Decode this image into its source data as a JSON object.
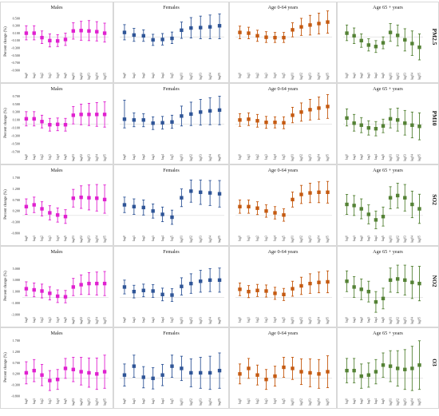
{
  "figure": {
    "columns": [
      "Males",
      "Females",
      "Age 0-64 years",
      "Age 65 + years"
    ],
    "pollutants": [
      "PM2.5",
      "PM10",
      "SO2",
      "NO2",
      "O3"
    ],
    "ylabel": "Percent change (%)",
    "xcategories": [
      "lag0",
      "lag1",
      "lag2",
      "lag3",
      "lag4",
      "lag5",
      "lag01",
      "lag02",
      "lag03",
      "lag04",
      "lag05"
    ],
    "colors": {
      "Males": "#e020d0",
      "Females": "#2f5597",
      "Age 0-64 years": "#c55a11",
      "Age 65 + years": "#548235"
    }
  },
  "chart_data": [
    {
      "type": "scatter",
      "row": "PM2.5",
      "column": "Males",
      "ylim": [
        -0.9,
        0.65
      ],
      "yticks_labels": [
        "-0.900",
        "-0.700",
        "-0.500",
        "-0.300",
        "-0.100",
        "0.100",
        "0.300",
        "0.500"
      ],
      "yticks": [
        -0.9,
        -0.7,
        -0.5,
        -0.3,
        -0.1,
        0.1,
        0.3,
        0.5
      ],
      "x": [
        "lag0",
        "lag1",
        "lag2",
        "lag3",
        "lag4",
        "lag5",
        "lag01",
        "lag02",
        "lag03",
        "lag04",
        "lag05"
      ],
      "values": [
        0.1,
        0.1,
        -0.02,
        -0.1,
        -0.11,
        -0.07,
        0.16,
        0.17,
        0.16,
        0.14,
        0.1
      ],
      "lower": [
        -0.08,
        -0.08,
        -0.18,
        -0.27,
        -0.26,
        -0.23,
        -0.06,
        -0.09,
        -0.1,
        -0.11,
        -0.14
      ],
      "upper": [
        0.3,
        0.3,
        0.16,
        0.08,
        0.06,
        0.1,
        0.38,
        0.42,
        0.44,
        0.41,
        0.37
      ]
    },
    {
      "type": "scatter",
      "row": "PM2.5",
      "column": "Females",
      "ylim": [
        -0.9,
        0.65
      ],
      "x": [
        "lag0",
        "lag1",
        "lag2",
        "lag3",
        "lag4",
        "lag5",
        "lag01",
        "lag02",
        "lag03",
        "lag04",
        "lag05"
      ],
      "values": [
        0.12,
        0.05,
        0.03,
        -0.08,
        -0.07,
        -0.04,
        0.18,
        0.24,
        0.25,
        0.27,
        0.3
      ],
      "lower": [
        -0.08,
        -0.12,
        -0.12,
        -0.23,
        -0.22,
        -0.18,
        -0.04,
        -0.03,
        -0.05,
        -0.05,
        -0.05
      ],
      "upper": [
        0.33,
        0.23,
        0.19,
        0.07,
        0.09,
        0.13,
        0.4,
        0.52,
        0.56,
        0.59,
        0.62
      ]
    },
    {
      "type": "scatter",
      "row": "PM2.5",
      "column": "Age 0-64 years",
      "ylim": [
        -0.9,
        0.65
      ],
      "x": [
        "lag0",
        "lag1",
        "lag2",
        "lag3",
        "lag4",
        "lag5",
        "lag01",
        "lag02",
        "lag03",
        "lag04",
        "lag05"
      ],
      "values": [
        0.12,
        0.1,
        0.03,
        -0.01,
        -0.02,
        -0.02,
        0.19,
        0.27,
        0.32,
        0.36,
        0.4
      ],
      "lower": [
        -0.05,
        -0.05,
        -0.12,
        -0.15,
        -0.15,
        -0.15,
        0.0,
        0.04,
        0.05,
        0.08,
        0.1
      ],
      "upper": [
        0.29,
        0.26,
        0.18,
        0.14,
        0.12,
        0.12,
        0.38,
        0.5,
        0.58,
        0.64,
        0.7
      ]
    },
    {
      "type": "scatter",
      "row": "PM2.5",
      "column": "Age 65 + years",
      "ylim": [
        -0.9,
        0.65
      ],
      "x": [
        "lag0",
        "lag1",
        "lag2",
        "lag3",
        "lag4",
        "lag5",
        "lag01",
        "lag02",
        "lag03",
        "lag04",
        "lag05"
      ],
      "values": [
        0.1,
        0.03,
        -0.1,
        -0.22,
        -0.26,
        -0.16,
        0.12,
        0.04,
        -0.08,
        -0.18,
        -0.28
      ],
      "lower": [
        -0.1,
        -0.18,
        -0.28,
        -0.38,
        -0.42,
        -0.32,
        -0.12,
        -0.24,
        -0.38,
        -0.5,
        -0.62
      ],
      "upper": [
        0.32,
        0.24,
        0.08,
        -0.05,
        -0.1,
        0.0,
        0.36,
        0.32,
        0.22,
        0.16,
        0.08
      ]
    },
    {
      "type": "scatter",
      "row": "PM10",
      "column": "Males",
      "ylim": [
        -0.7,
        0.75
      ],
      "yticks_labels": [
        "-0.700",
        "-0.500",
        "-0.300",
        "-0.100",
        "0.100",
        "0.300",
        "0.500",
        "0.700"
      ],
      "yticks": [
        -0.7,
        -0.5,
        -0.3,
        -0.1,
        0.1,
        0.3,
        0.5,
        0.7
      ],
      "x": [
        "lag0",
        "lag1",
        "lag2",
        "lag3",
        "lag4",
        "lag5",
        "lag01",
        "lag02",
        "lag03",
        "lag04",
        "lag05"
      ],
      "values": [
        0.13,
        0.13,
        0.06,
        -0.02,
        -0.01,
        -0.02,
        0.22,
        0.24,
        0.24,
        0.24,
        0.24
      ],
      "lower": [
        -0.05,
        -0.05,
        -0.1,
        -0.18,
        -0.17,
        -0.18,
        0.0,
        -0.02,
        -0.04,
        -0.06,
        -0.08
      ],
      "upper": [
        0.31,
        0.31,
        0.22,
        0.14,
        0.15,
        0.14,
        0.44,
        0.5,
        0.52,
        0.54,
        0.56
      ]
    },
    {
      "type": "scatter",
      "row": "PM10",
      "column": "Females",
      "ylim": [
        -0.7,
        0.75
      ],
      "x": [
        "lag0",
        "lag1",
        "lag2",
        "lag3",
        "lag4",
        "lag5",
        "lag01",
        "lag02",
        "lag03",
        "lag04",
        "lag05"
      ],
      "values": [
        0.12,
        0.1,
        0.1,
        0.02,
        0.03,
        0.05,
        0.2,
        0.25,
        0.3,
        0.33,
        0.35
      ],
      "lower": [
        -0.1,
        -0.07,
        -0.07,
        -0.14,
        -0.13,
        -0.11,
        -0.05,
        -0.04,
        -0.03,
        -0.02,
        -0.02
      ],
      "upper": [
        0.6,
        0.28,
        0.26,
        0.18,
        0.19,
        0.22,
        0.45,
        0.55,
        0.62,
        0.66,
        0.7
      ]
    },
    {
      "type": "scatter",
      "row": "PM10",
      "column": "Age 0-64 years",
      "ylim": [
        -0.7,
        0.75
      ],
      "x": [
        "lag0",
        "lag1",
        "lag2",
        "lag3",
        "lag4",
        "lag5",
        "lag01",
        "lag02",
        "lag03",
        "lag04",
        "lag05"
      ],
      "values": [
        0.1,
        0.12,
        0.08,
        0.04,
        0.04,
        0.03,
        0.22,
        0.3,
        0.36,
        0.4,
        0.44
      ],
      "lower": [
        -0.06,
        -0.04,
        -0.08,
        -0.11,
        -0.1,
        -0.12,
        0.03,
        0.07,
        0.1,
        0.12,
        0.14
      ],
      "upper": [
        0.26,
        0.28,
        0.24,
        0.19,
        0.18,
        0.18,
        0.42,
        0.53,
        0.62,
        0.68,
        0.74
      ]
    },
    {
      "type": "scatter",
      "row": "PM10",
      "column": "Age 65 + years",
      "ylim": [
        -0.7,
        0.75
      ],
      "x": [
        "lag0",
        "lag1",
        "lag2",
        "lag3",
        "lag4",
        "lag5",
        "lag01",
        "lag02",
        "lag03",
        "lag04",
        "lag05"
      ],
      "values": [
        0.15,
        0.02,
        -0.03,
        -0.1,
        -0.12,
        -0.05,
        0.13,
        0.1,
        0.02,
        -0.03,
        -0.06
      ],
      "lower": [
        -0.05,
        -0.18,
        -0.22,
        -0.28,
        -0.3,
        -0.22,
        -0.1,
        -0.18,
        -0.28,
        -0.35,
        -0.4
      ],
      "upper": [
        0.38,
        0.24,
        0.16,
        0.08,
        0.06,
        0.12,
        0.38,
        0.4,
        0.34,
        0.3,
        0.28
      ]
    },
    {
      "type": "scatter",
      "row": "SO2",
      "column": "Males",
      "ylim": [
        -0.8,
        1.8
      ],
      "yticks_labels": [
        "-0.800",
        "-0.300",
        "0.200",
        "0.700",
        "1.200",
        "1.700"
      ],
      "yticks": [
        -0.8,
        -0.3,
        0.2,
        0.7,
        1.2,
        1.7
      ],
      "x": [
        "lag0",
        "lag1",
        "lag2",
        "lag3",
        "lag4",
        "lag5",
        "lag01",
        "lag02",
        "lag03",
        "lag04",
        "lag05"
      ],
      "values": [
        0.4,
        0.48,
        0.3,
        0.12,
        0.02,
        -0.05,
        0.78,
        0.82,
        0.8,
        0.78,
        0.72
      ],
      "lower": [
        0.05,
        0.13,
        -0.02,
        -0.2,
        -0.3,
        -0.36,
        0.38,
        0.32,
        0.25,
        0.2,
        0.1
      ],
      "upper": [
        0.75,
        0.83,
        0.62,
        0.44,
        0.34,
        0.26,
        1.18,
        1.34,
        1.38,
        1.4,
        1.38
      ]
    },
    {
      "type": "scatter",
      "row": "SO2",
      "column": "Females",
      "ylim": [
        -0.8,
        1.8
      ],
      "x": [
        "lag0",
        "lag1",
        "lag2",
        "lag3",
        "lag4",
        "lag5",
        "lag01",
        "lag02",
        "lag03",
        "lag04",
        "lag05"
      ],
      "values": [
        0.48,
        0.4,
        0.36,
        0.2,
        0.05,
        -0.08,
        0.8,
        1.1,
        1.05,
        1.02,
        0.98
      ],
      "lower": [
        0.13,
        0.05,
        0.02,
        -0.12,
        -0.28,
        -0.4,
        0.4,
        0.6,
        0.5,
        0.45,
        0.38
      ],
      "upper": [
        0.83,
        0.75,
        0.7,
        0.52,
        0.38,
        0.24,
        1.2,
        1.6,
        1.6,
        1.58,
        1.58
      ]
    },
    {
      "type": "scatter",
      "row": "SO2",
      "column": "Age 0-64 years",
      "ylim": [
        -0.8,
        1.8
      ],
      "x": [
        "lag0",
        "lag1",
        "lag2",
        "lag3",
        "lag4",
        "lag5",
        "lag01",
        "lag02",
        "lag03",
        "lag04",
        "lag05"
      ],
      "values": [
        0.4,
        0.4,
        0.33,
        0.2,
        0.12,
        0.02,
        0.72,
        0.95,
        1.02,
        1.05,
        1.05
      ],
      "lower": [
        0.1,
        0.1,
        0.04,
        -0.08,
        -0.16,
        -0.26,
        0.38,
        0.54,
        0.58,
        0.58,
        0.56
      ],
      "upper": [
        0.7,
        0.7,
        0.62,
        0.48,
        0.4,
        0.3,
        1.06,
        1.36,
        1.46,
        1.52,
        1.54
      ]
    },
    {
      "type": "scatter",
      "row": "SO2",
      "column": "Age 65 + years",
      "ylim": [
        -0.8,
        1.8
      ],
      "x": [
        "lag0",
        "lag1",
        "lag2",
        "lag3",
        "lag4",
        "lag5",
        "lag01",
        "lag02",
        "lag03",
        "lag04",
        "lag05"
      ],
      "values": [
        0.5,
        0.45,
        0.3,
        0.05,
        -0.2,
        -0.05,
        0.8,
        0.9,
        0.8,
        0.5,
        0.3
      ],
      "lower": [
        0.05,
        0.0,
        -0.15,
        -0.38,
        -0.6,
        -0.48,
        0.3,
        0.34,
        0.2,
        -0.1,
        -0.36
      ],
      "upper": [
        0.95,
        0.9,
        0.75,
        0.48,
        0.2,
        0.38,
        1.3,
        1.46,
        1.4,
        1.1,
        0.96
      ]
    },
    {
      "type": "scatter",
      "row": "NO2",
      "column": "Males",
      "ylim": [
        -3.0,
        7.0
      ],
      "yticks_labels": [
        "-3.000",
        "-1.000",
        "1.000",
        "3.000",
        "5.000"
      ],
      "yticks": [
        -3.0,
        -1.0,
        1.0,
        3.0,
        5.0
      ],
      "x": [
        "lag0",
        "lag1",
        "lag2",
        "lag3",
        "lag4",
        "lag5",
        "lag01",
        "lag02",
        "lag03",
        "lag04",
        "lag05"
      ],
      "values": [
        1.5,
        1.3,
        1.1,
        0.7,
        0.2,
        0.1,
        1.8,
        2.2,
        2.4,
        2.4,
        2.4
      ],
      "lower": [
        0.3,
        0.1,
        -0.1,
        -0.45,
        -0.9,
        -0.95,
        0.3,
        0.5,
        0.5,
        0.4,
        0.3
      ],
      "upper": [
        2.7,
        2.5,
        2.3,
        1.85,
        1.3,
        1.2,
        3.3,
        3.9,
        4.3,
        4.4,
        4.5
      ]
    },
    {
      "type": "scatter",
      "row": "NO2",
      "column": "Females",
      "ylim": [
        -3.0,
        7.0
      ],
      "x": [
        "lag0",
        "lag1",
        "lag2",
        "lag3",
        "lag4",
        "lag5",
        "lag01",
        "lag02",
        "lag03",
        "lag04",
        "lag05"
      ],
      "values": [
        1.8,
        1.0,
        1.2,
        1.1,
        0.5,
        0.4,
        1.9,
        2.4,
        2.8,
        3.0,
        3.0
      ],
      "lower": [
        0.6,
        -0.1,
        0.1,
        0.0,
        -0.6,
        -0.7,
        0.4,
        0.7,
        0.9,
        1.0,
        0.9
      ],
      "upper": [
        3.0,
        2.1,
        2.3,
        2.2,
        1.6,
        1.5,
        3.4,
        4.1,
        4.7,
        5.0,
        5.1
      ]
    },
    {
      "type": "scatter",
      "row": "NO2",
      "column": "Age 0-64 years",
      "ylim": [
        -3.0,
        7.0
      ],
      "x": [
        "lag0",
        "lag1",
        "lag2",
        "lag3",
        "lag4",
        "lag5",
        "lag01",
        "lag02",
        "lag03",
        "lag04",
        "lag05"
      ],
      "values": [
        1.4,
        1.0,
        1.2,
        1.1,
        0.7,
        0.5,
        1.5,
        2.0,
        2.4,
        2.6,
        2.7
      ],
      "lower": [
        0.3,
        -0.05,
        0.15,
        0.05,
        -0.35,
        -0.55,
        0.2,
        0.5,
        0.7,
        0.8,
        0.8
      ],
      "upper": [
        2.5,
        2.05,
        2.25,
        2.15,
        1.75,
        1.55,
        2.8,
        3.5,
        4.1,
        4.4,
        4.6
      ]
    },
    {
      "type": "scatter",
      "row": "NO2",
      "column": "Age 65 + years",
      "ylim": [
        -3.0,
        7.0
      ],
      "x": [
        "lag0",
        "lag1",
        "lag2",
        "lag3",
        "lag4",
        "lag5",
        "lag01",
        "lag02",
        "lag03",
        "lag04",
        "lag05"
      ],
      "values": [
        2.8,
        1.8,
        1.4,
        1.0,
        -0.8,
        -0.2,
        3.0,
        3.2,
        3.0,
        2.6,
        2.4
      ],
      "lower": [
        1.0,
        0.0,
        -0.4,
        -0.8,
        -2.6,
        -2.0,
        0.9,
        0.8,
        0.4,
        -0.2,
        -0.6
      ],
      "upper": [
        4.6,
        3.6,
        3.2,
        2.8,
        1.0,
        1.6,
        5.1,
        5.6,
        5.6,
        5.4,
        5.4
      ]
    },
    {
      "type": "scatter",
      "row": "O3",
      "column": "Males",
      "ylim": [
        -0.8,
        1.8
      ],
      "yticks_labels": [
        "-0.800",
        "-0.300",
        "0.200",
        "0.700",
        "1.200",
        "1.700"
      ],
      "yticks": [
        -0.8,
        -0.3,
        0.2,
        0.7,
        1.2,
        1.7
      ],
      "x": [
        "lag0",
        "lag1",
        "lag2",
        "lag3",
        "lag4",
        "lag5",
        "lag01",
        "lag02",
        "lag03",
        "lag04",
        "lag05"
      ],
      "values": [
        0.25,
        0.35,
        0.15,
        -0.1,
        -0.05,
        0.45,
        0.4,
        0.3,
        0.25,
        0.2,
        0.3
      ],
      "lower": [
        -0.25,
        -0.15,
        -0.33,
        -0.55,
        -0.5,
        0.0,
        -0.15,
        -0.3,
        -0.4,
        -0.5,
        -0.45
      ],
      "upper": [
        0.75,
        0.85,
        0.63,
        0.35,
        0.4,
        0.9,
        0.95,
        0.95,
        0.92,
        0.92,
        1.05
      ]
    },
    {
      "type": "scatter",
      "row": "O3",
      "column": "Females",
      "ylim": [
        -0.8,
        1.8
      ],
      "x": [
        "lag0",
        "lag1",
        "lag2",
        "lag3",
        "lag4",
        "lag5",
        "lag01",
        "lag02",
        "lag03",
        "lag04",
        "lag05"
      ],
      "values": [
        0.15,
        0.55,
        0.05,
        0.0,
        0.15,
        0.55,
        0.45,
        0.25,
        0.25,
        0.25,
        0.35
      ],
      "lower": [
        -0.35,
        0.05,
        -0.43,
        -0.48,
        -0.33,
        0.05,
        -0.1,
        -0.38,
        -0.45,
        -0.5,
        -0.45
      ],
      "upper": [
        0.65,
        1.05,
        0.53,
        0.48,
        0.63,
        1.05,
        1.0,
        0.88,
        0.95,
        1.0,
        1.15
      ]
    },
    {
      "type": "scatter",
      "row": "O3",
      "column": "Age 0-64 years",
      "ylim": [
        -0.8,
        1.8
      ],
      "x": [
        "lag0",
        "lag1",
        "lag2",
        "lag3",
        "lag4",
        "lag5",
        "lag01",
        "lag02",
        "lag03",
        "lag04",
        "lag05"
      ],
      "values": [
        0.2,
        0.45,
        0.15,
        -0.05,
        0.1,
        0.5,
        0.45,
        0.3,
        0.25,
        0.2,
        0.3
      ],
      "lower": [
        -0.25,
        0.0,
        -0.3,
        -0.5,
        -0.35,
        0.05,
        -0.05,
        -0.28,
        -0.38,
        -0.45,
        -0.42
      ],
      "upper": [
        0.65,
        0.9,
        0.6,
        0.4,
        0.55,
        0.95,
        0.95,
        0.88,
        0.88,
        0.85,
        1.02
      ]
    },
    {
      "type": "scatter",
      "row": "O3",
      "column": "Age 65 + years",
      "ylim": [
        -0.8,
        1.8
      ],
      "x": [
        "lag0",
        "lag1",
        "lag2",
        "lag3",
        "lag4",
        "lag5",
        "lag01",
        "lag02",
        "lag03",
        "lag04",
        "lag05"
      ],
      "values": [
        0.35,
        0.35,
        0.1,
        0.15,
        0.3,
        0.6,
        0.55,
        0.45,
        0.4,
        0.45,
        0.6
      ],
      "lower": [
        -0.2,
        -0.2,
        -0.45,
        -0.4,
        -0.25,
        0.05,
        -0.15,
        -0.35,
        -0.5,
        -0.55,
        -0.5
      ],
      "upper": [
        0.9,
        0.9,
        0.65,
        0.7,
        0.85,
        1.15,
        1.25,
        1.25,
        1.3,
        1.45,
        1.7
      ]
    }
  ]
}
